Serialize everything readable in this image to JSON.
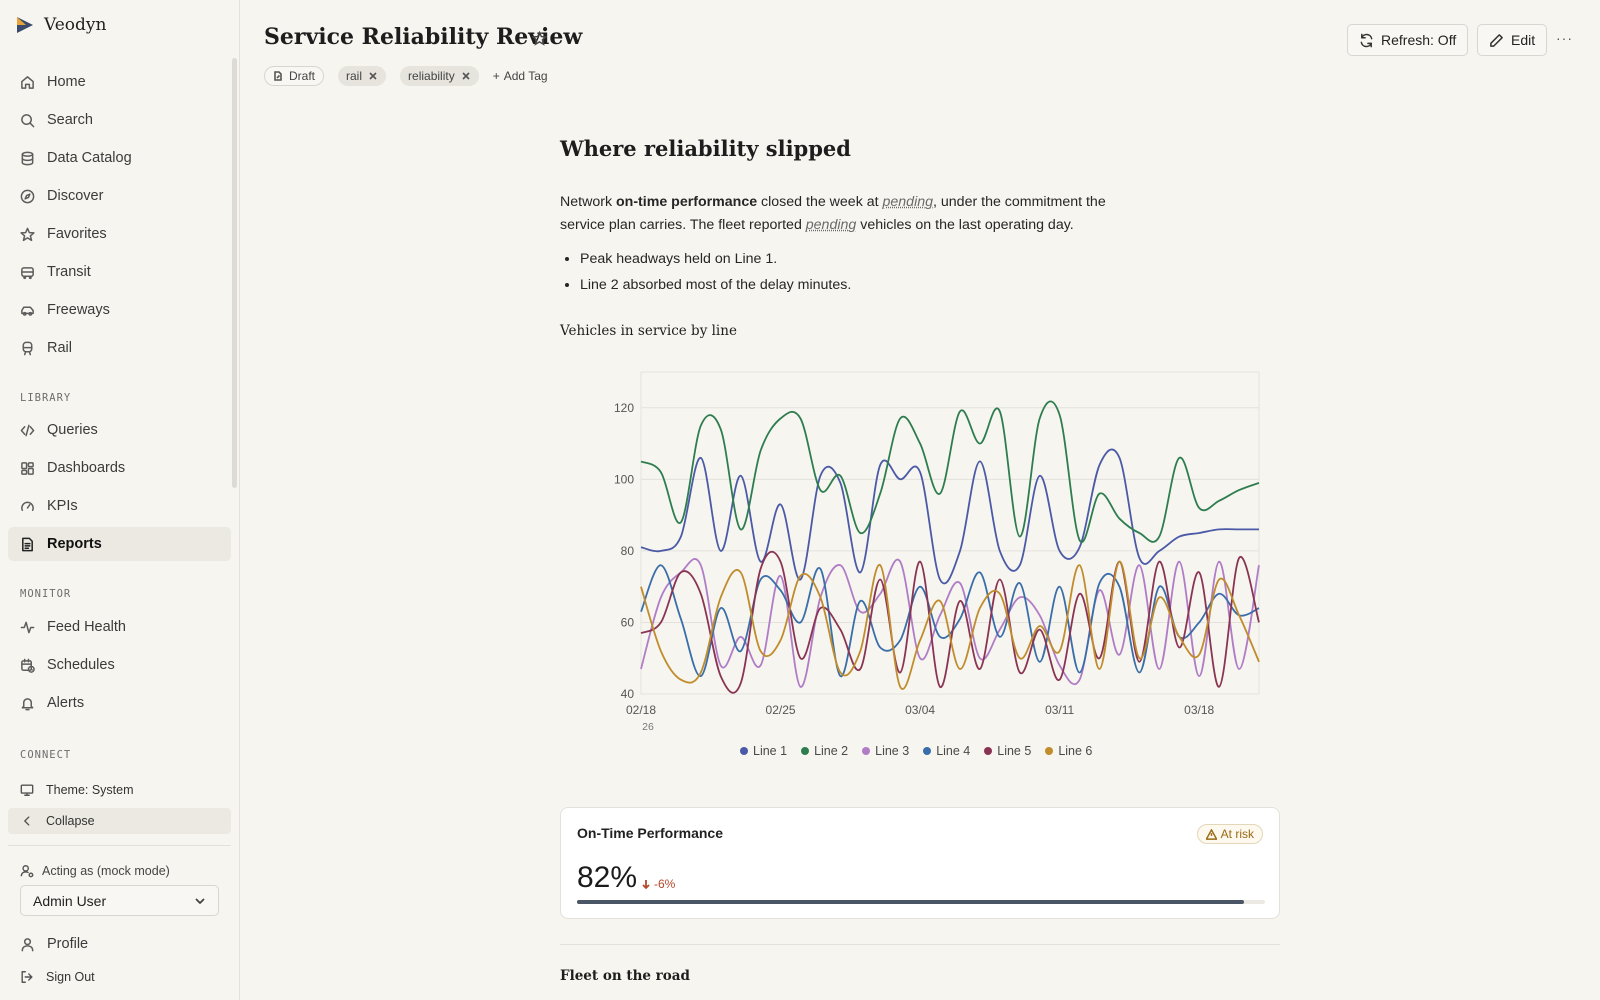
{
  "app": {
    "name": "Veodyn"
  },
  "sidebar": {
    "main_items": [
      {
        "label": "Home",
        "icon": "home-icon"
      },
      {
        "label": "Search",
        "icon": "search-icon"
      },
      {
        "label": "Data Catalog",
        "icon": "database-icon"
      },
      {
        "label": "Discover",
        "icon": "compass-icon"
      },
      {
        "label": "Favorites",
        "icon": "star-icon"
      },
      {
        "label": "Transit",
        "icon": "bus-icon"
      },
      {
        "label": "Freeways",
        "icon": "car-icon"
      },
      {
        "label": "Rail",
        "icon": "train-icon"
      }
    ],
    "library_label": "LIBRARY",
    "library_items": [
      {
        "label": "Queries",
        "icon": "code-icon"
      },
      {
        "label": "Dashboards",
        "icon": "grid-icon"
      },
      {
        "label": "KPIs",
        "icon": "gauge-icon"
      },
      {
        "label": "Reports",
        "icon": "document-icon",
        "active": true
      }
    ],
    "monitor_label": "MONITOR",
    "monitor_items": [
      {
        "label": "Feed Health",
        "icon": "activity-icon"
      },
      {
        "label": "Schedules",
        "icon": "calendar-clock-icon"
      },
      {
        "label": "Alerts",
        "icon": "bell-icon"
      }
    ],
    "connect_label": "CONNECT",
    "theme_label": "Theme: System",
    "collapse_label": "Collapse",
    "acting_label": "Acting as (mock mode)",
    "user_select_value": "Admin User",
    "profile_label": "Profile",
    "signout_label": "Sign Out"
  },
  "header": {
    "title": "Service Reliability Review",
    "tags": {
      "draft": "Draft",
      "items": [
        "rail",
        "reliability"
      ],
      "add": "Add Tag"
    },
    "refresh_label": "Refresh: Off",
    "edit_label": "Edit",
    "more_label": "···"
  },
  "content": {
    "heading": "Where reliability slipped",
    "para": {
      "p1": "Network ",
      "bold": "on-time performance",
      "p2": " closed the week at ",
      "pending1": "pending",
      "p3": ", under the commitment the service plan carries. The fleet reported ",
      "pending2": "pending",
      "p4": " vehicles on the last operating day."
    },
    "bullets": [
      "Peak headways held on Line 1.",
      "Line 2 absorbed most of the delay minutes."
    ],
    "chart_title": "Vehicles in service by line",
    "kpi": {
      "title": "On-Time Performance",
      "badge": "At risk",
      "value": "82%",
      "delta": "-6%",
      "progress": 0.97
    },
    "section2_title": "Fleet on the road"
  },
  "chart_data": {
    "type": "line",
    "title": "Vehicles in service by line",
    "xlabel": "",
    "ylabel": "",
    "ylim": [
      40,
      130
    ],
    "y_ticks": [
      40,
      60,
      80,
      100,
      120
    ],
    "x_range": [
      "2026-02-18",
      "2026-03-21"
    ],
    "x_ticks": [
      {
        "date": "2026-02-18",
        "label": "02/18",
        "sub": "26"
      },
      {
        "date": "2026-02-25",
        "label": "02/25",
        "sub": ""
      },
      {
        "date": "2026-03-04",
        "label": "03/04",
        "sub": ""
      },
      {
        "date": "2026-03-11",
        "label": "03/11",
        "sub": ""
      },
      {
        "date": "2026-03-18",
        "label": "03/18",
        "sub": ""
      }
    ],
    "grid": true,
    "legend_position": "bottom",
    "categories": [
      "2026-02-18",
      "2026-02-19",
      "2026-02-20",
      "2026-02-21",
      "2026-02-22",
      "2026-02-23",
      "2026-02-24",
      "2026-02-25",
      "2026-02-26",
      "2026-02-27",
      "2026-02-28",
      "2026-03-01",
      "2026-03-02",
      "2026-03-03",
      "2026-03-04",
      "2026-03-05",
      "2026-03-06",
      "2026-03-07",
      "2026-03-08",
      "2026-03-09",
      "2026-03-10",
      "2026-03-11",
      "2026-03-12",
      "2026-03-13",
      "2026-03-14",
      "2026-03-15",
      "2026-03-16",
      "2026-03-17",
      "2026-03-18",
      "2026-03-19",
      "2026-03-20",
      "2026-03-21"
    ],
    "series": [
      {
        "name": "Line 1",
        "color": "#4b5aa6",
        "values": [
          81,
          80,
          84,
          106,
          80,
          101,
          77,
          93,
          72,
          101,
          99,
          74,
          104,
          100,
          102,
          72,
          80,
          105,
          80,
          76,
          101,
          80,
          81,
          104,
          106,
          78,
          80,
          84,
          85,
          86,
          86,
          86
        ]
      },
      {
        "name": "Line 2",
        "color": "#2e7d4f",
        "values": [
          105,
          102,
          88,
          115,
          114,
          86,
          108,
          117,
          117,
          97,
          101,
          85,
          96,
          117,
          110,
          96,
          119,
          110,
          119,
          84,
          117,
          118,
          83,
          96,
          89,
          85,
          84,
          106,
          92,
          94,
          97,
          99
        ]
      },
      {
        "name": "Line 3",
        "color": "#b07cc6",
        "values": [
          47,
          67,
          74,
          76,
          48,
          56,
          48,
          73,
          42,
          67,
          76,
          63,
          68,
          77,
          50,
          62,
          71,
          50,
          58,
          67,
          62,
          48,
          44,
          69,
          51,
          76,
          47,
          77,
          45,
          77,
          47,
          76
        ]
      },
      {
        "name": "Line 4",
        "color": "#3a6ea8",
        "values": [
          63,
          76,
          61,
          45,
          64,
          52,
          72,
          69,
          60,
          75,
          45,
          66,
          53,
          55,
          70,
          56,
          61,
          74,
          56,
          71,
          49,
          70,
          46,
          71,
          70,
          46,
          70,
          56,
          60,
          68,
          62,
          64
        ]
      },
      {
        "name": "Line 5",
        "color": "#8a3453",
        "values": [
          57,
          60,
          74,
          68,
          45,
          43,
          75,
          77,
          50,
          64,
          58,
          47,
          72,
          46,
          77,
          42,
          66,
          47,
          72,
          46,
          58,
          44,
          68,
          50,
          77,
          49,
          77,
          53,
          74,
          42,
          78,
          60
        ]
      },
      {
        "name": "Line 6",
        "color": "#c08c2c",
        "values": [
          70,
          52,
          44,
          46,
          67,
          74,
          52,
          55,
          73,
          67,
          46,
          52,
          76,
          42,
          55,
          66,
          47,
          64,
          68,
          50,
          59,
          52,
          76,
          47,
          77,
          50,
          67,
          56,
          51,
          72,
          62,
          49
        ]
      }
    ]
  }
}
